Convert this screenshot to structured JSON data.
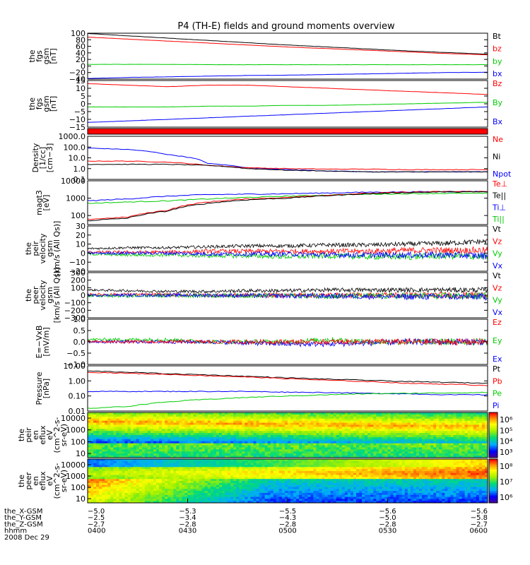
{
  "title": "P4 (TH-E) fields and ground moments overview",
  "colors": {
    "black": "#000000",
    "red": "#ff0000",
    "green": "#00cc00",
    "blue": "#0000ff"
  },
  "chart_data": [
    {
      "type": "line",
      "key": "fgs_gsm",
      "ylabel": [
        "the",
        "fgs",
        "gsm",
        "[nT]"
      ],
      "yticks": [
        "100",
        "80",
        "60",
        "40",
        "20",
        "0",
        "−20",
        "−40"
      ],
      "ylim": [
        -40,
        100
      ],
      "scale": "linear",
      "legend": [
        {
          "name": "Bt",
          "color": "#000000"
        },
        {
          "name": "bz",
          "color": "#ff0000"
        },
        {
          "name": "by",
          "color": "#00cc00"
        },
        {
          "name": "bx",
          "color": "#0000ff"
        }
      ],
      "series": [
        {
          "color": "#000000",
          "values": [
            99,
            92,
            85,
            78,
            71,
            64,
            58,
            52,
            46,
            41,
            36
          ]
        },
        {
          "color": "#ff0000",
          "values": [
            88,
            82,
            76,
            70,
            64,
            58,
            53,
            48,
            43,
            38,
            34
          ]
        },
        {
          "color": "#00cc00",
          "values": [
            5,
            5,
            5,
            4,
            4,
            4,
            4,
            4,
            4,
            4,
            4
          ]
        },
        {
          "color": "#0000ff",
          "values": [
            -38,
            -35,
            -33,
            -31,
            -29,
            -28,
            -26,
            -24,
            -22,
            -20,
            -19
          ]
        }
      ]
    },
    {
      "type": "line",
      "key": "fgs_gsm_detrended",
      "ylabel": [
        "the",
        "fgs",
        "gsm",
        "[nT]"
      ],
      "yticks": [
        "15",
        "10",
        "5",
        "0",
        "−5",
        "−10",
        "−15"
      ],
      "ylim": [
        -15,
        15
      ],
      "scale": "linear",
      "legend": [
        {
          "name": "Bz",
          "color": "#ff0000"
        },
        {
          "name": "By",
          "color": "#00cc00"
        },
        {
          "name": "Bx",
          "color": "#0000ff"
        }
      ],
      "series": [
        {
          "color": "#ff0000",
          "values": [
            13,
            12,
            11,
            12,
            12,
            11,
            10,
            9,
            8,
            7,
            6
          ]
        },
        {
          "color": "#00cc00",
          "values": [
            -2,
            -2,
            -2,
            -1.5,
            -1.5,
            -1,
            -1,
            -0.5,
            0,
            0.5,
            1
          ]
        },
        {
          "color": "#0000ff",
          "values": [
            -12,
            -11,
            -10,
            -9,
            -8,
            -7,
            -6,
            -5,
            -4,
            -3,
            -2
          ]
        }
      ]
    },
    {
      "type": "line",
      "key": "density",
      "ylabel": [
        "Density",
        "[1/cc]",
        "[cm−3]"
      ],
      "yticks": [
        "1000.0",
        "100.0",
        "10.0",
        "1.0",
        "0.1"
      ],
      "ylim": [
        0.1,
        1000
      ],
      "scale": "log",
      "legend": [
        {
          "name": "Ne",
          "color": "#ff0000"
        },
        {
          "name": "Ni",
          "color": "#000000"
        },
        {
          "name": "Npot",
          "color": "#0000ff"
        }
      ],
      "series": [
        {
          "color": "#0000ff",
          "values": [
            80,
            60,
            20,
            3,
            1.2,
            0.8,
            0.6,
            0.5,
            0.5,
            0.5,
            0.5
          ]
        },
        {
          "color": "#ff0000",
          "values": [
            5,
            5,
            4,
            2,
            1.2,
            1.0,
            0.9,
            0.9,
            0.8,
            0.8,
            0.8
          ]
        },
        {
          "color": "#000000",
          "values": [
            2.5,
            2.5,
            2.5,
            2,
            1,
            0.7,
            0.6,
            0.5,
            0.5,
            0.5,
            0.5
          ]
        }
      ]
    },
    {
      "type": "line",
      "key": "temperature",
      "ylabel": [
        "magt3",
        "[eV]"
      ],
      "yticks": [
        "10000",
        "1000",
        "100"
      ],
      "ylim": [
        30,
        10000
      ],
      "scale": "log",
      "legend": [
        {
          "name": "Te⊥",
          "color": "#ff0000"
        },
        {
          "name": "Te||",
          "color": "#000000"
        },
        {
          "name": "Ti⊥",
          "color": "#0000ff"
        },
        {
          "name": "Ti||",
          "color": "#00cc00"
        }
      ],
      "series": [
        {
          "color": "#0000ff",
          "values": [
            700,
            900,
            1300,
            1600,
            1700,
            1800,
            2000,
            2200,
            2300,
            2400,
            2400
          ]
        },
        {
          "color": "#00cc00",
          "values": [
            500,
            600,
            700,
            900,
            1100,
            1300,
            1500,
            1700,
            1800,
            1900,
            1900
          ]
        },
        {
          "color": "#ff0000",
          "values": [
            60,
            80,
            200,
            600,
            900,
            1100,
            1500,
            1900,
            2200,
            2400,
            2400
          ]
        },
        {
          "color": "#000000",
          "values": [
            50,
            70,
            180,
            500,
            800,
            1000,
            1400,
            1800,
            2100,
            2300,
            2300
          ]
        }
      ]
    },
    {
      "type": "line",
      "key": "peir_velocity",
      "ylabel": [
        "the",
        "peir",
        "velocity",
        "gsm",
        "[km/s (All Qs)]"
      ],
      "yticks": [
        "30",
        "20",
        "10",
        "0",
        "−10",
        "−20"
      ],
      "ylim": [
        -20,
        30
      ],
      "scale": "linear",
      "legend": [
        {
          "name": "Vt",
          "color": "#000000"
        },
        {
          "name": "Vz",
          "color": "#ff0000"
        },
        {
          "name": "Vy",
          "color": "#00cc00"
        },
        {
          "name": "Vx",
          "color": "#0000ff"
        }
      ],
      "series": [
        {
          "color": "#000000",
          "values": [
            5,
            6,
            6,
            7,
            8,
            8,
            9,
            9,
            10,
            11,
            13
          ]
        },
        {
          "color": "#ff0000",
          "values": [
            1,
            1,
            1,
            2,
            2,
            2,
            2,
            2,
            3,
            3,
            3
          ]
        },
        {
          "color": "#00cc00",
          "values": [
            -1,
            -2,
            -2,
            -3,
            -3,
            -4,
            -3,
            -4,
            -4,
            -3,
            -4
          ]
        },
        {
          "color": "#0000ff",
          "values": [
            0,
            0,
            0,
            -1,
            -1,
            -1,
            -2,
            -2,
            -2,
            -2,
            -3
          ]
        }
      ]
    },
    {
      "type": "line",
      "key": "peer_velocity",
      "ylabel": [
        "the",
        "peer",
        "velocity",
        "gsm",
        "[km/s (All Qs)]"
      ],
      "yticks": [
        "300",
        "200",
        "100",
        "0",
        "−100",
        "−200",
        "−300"
      ],
      "ylim": [
        -300,
        300
      ],
      "scale": "linear",
      "legend": [
        {
          "name": "Vt",
          "color": "#000000"
        },
        {
          "name": "Vz",
          "color": "#ff0000"
        },
        {
          "name": "Vy",
          "color": "#00cc00"
        },
        {
          "name": "Vx",
          "color": "#0000ff"
        }
      ],
      "series": [
        {
          "color": "#000000",
          "values": [
            70,
            60,
            50,
            50,
            60,
            60,
            70,
            70,
            70,
            70,
            70
          ]
        },
        {
          "color": "#ff0000",
          "values": [
            10,
            10,
            5,
            0,
            0,
            0,
            0,
            0,
            0,
            0,
            0
          ]
        },
        {
          "color": "#00cc00",
          "values": [
            -10,
            -10,
            -5,
            -5,
            -5,
            -5,
            -10,
            -10,
            -10,
            -10,
            -10
          ]
        },
        {
          "color": "#0000ff",
          "values": [
            0,
            0,
            0,
            0,
            -5,
            -10,
            -10,
            -15,
            -20,
            -20,
            -20
          ]
        }
      ]
    },
    {
      "type": "line",
      "key": "efield",
      "ylabel": [
        "E=−VxB",
        "[mV/m]"
      ],
      "yticks": [
        "1.0",
        "0.5",
        "0.0",
        "−0.5",
        "−1.0"
      ],
      "ylim": [
        -1,
        1
      ],
      "scale": "linear",
      "legend": [
        {
          "name": "Ez",
          "color": "#ff0000"
        },
        {
          "name": "Ey",
          "color": "#00cc00"
        },
        {
          "name": "Ex",
          "color": "#0000ff"
        }
      ],
      "series": [
        {
          "color": "#00cc00",
          "values": [
            0.1,
            0.1,
            0.1,
            0.0,
            0.0,
            0.0,
            0.1,
            0.0,
            0.0,
            0.0,
            0.0
          ]
        },
        {
          "color": "#0000ff",
          "values": [
            0.0,
            0.0,
            0.0,
            0.0,
            -0.05,
            -0.1,
            -0.1,
            -0.05,
            0.0,
            0.0,
            0.0
          ]
        },
        {
          "color": "#ff0000",
          "values": [
            0.0,
            0.0,
            0.0,
            0.0,
            0.0,
            0.0,
            0.0,
            0.0,
            0.0,
            0.0,
            0.0
          ]
        }
      ]
    },
    {
      "type": "line",
      "key": "pressure",
      "ylabel": [
        "Pressure",
        "[nPa]"
      ],
      "yticks": [
        "10.00",
        "1.00",
        "0.10",
        "0.01"
      ],
      "ylim": [
        0.01,
        10
      ],
      "scale": "log",
      "legend": [
        {
          "name": "Pt",
          "color": "#000000"
        },
        {
          "name": "Pb",
          "color": "#ff0000"
        },
        {
          "name": "Pe",
          "color": "#00cc00"
        },
        {
          "name": "Pi",
          "color": "#0000ff"
        }
      ],
      "series": [
        {
          "color": "#000000",
          "values": [
            4.5,
            3.8,
            3.0,
            2.5,
            2.0,
            1.6,
            1.3,
            1.1,
            0.9,
            0.8,
            0.7
          ]
        },
        {
          "color": "#ff0000",
          "values": [
            3.8,
            3.2,
            2.7,
            2.2,
            1.8,
            1.4,
            1.1,
            0.9,
            0.7,
            0.6,
            0.5
          ]
        },
        {
          "color": "#0000ff",
          "values": [
            0.2,
            0.2,
            0.2,
            0.2,
            0.2,
            0.18,
            0.17,
            0.15,
            0.14,
            0.12,
            0.12
          ]
        },
        {
          "color": "#00cc00",
          "values": [
            0.015,
            0.02,
            0.04,
            0.06,
            0.08,
            0.1,
            0.12,
            0.14,
            0.15,
            0.16,
            0.17
          ]
        }
      ]
    },
    {
      "type": "heatmap",
      "key": "peir_en_eflux",
      "ylabel": [
        "the",
        "peir",
        "en",
        "eflux",
        "eV",
        "(cm^2-s-",
        "sr-eV)"
      ],
      "yticks": [
        "10000",
        "1000",
        "100",
        "10"
      ],
      "colorbar": {
        "ticks": [
          "10⁶",
          "10⁵",
          "10⁴",
          "10³"
        ]
      }
    },
    {
      "type": "heatmap",
      "key": "peer_en_eflux",
      "ylabel": [
        "the",
        "peer",
        "en",
        "eflux",
        "eV",
        "(cm^2-s-",
        "sr-eV)"
      ],
      "yticks": [
        "10000",
        "1000",
        "100",
        "10"
      ],
      "colorbar": {
        "ticks": [
          "10⁸",
          "10⁷",
          "10⁶"
        ]
      }
    }
  ],
  "orbit": {
    "labels": [
      "the_X-GSM",
      "the_Y-GSM",
      "the_Z-GSM",
      "hhmm",
      "2008 Dec 29"
    ],
    "rows": [
      [
        "−5.0",
        "−5.3",
        "−5.5",
        "−5.6",
        "−5.6"
      ],
      [
        "−2.5",
        "−3.4",
        "−4.3",
        "−5.0",
        "−5.8"
      ],
      [
        "−2.7",
        "−2.8",
        "−2.8",
        "−2.8",
        "−2.7"
      ],
      [
        "0400",
        "0430",
        "0500",
        "0530",
        "0600"
      ]
    ]
  }
}
